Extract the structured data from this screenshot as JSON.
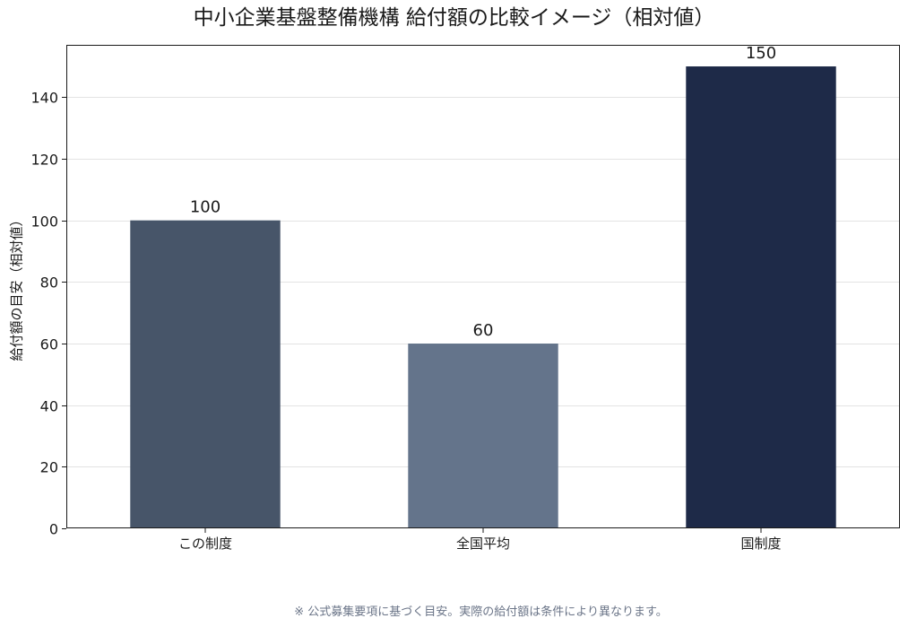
{
  "chart_data": {
    "type": "bar",
    "title": "中小企業基盤整備機構 給付額の比較イメージ（相対値）",
    "xlabel": "",
    "ylabel": "給付額の目安（相対値）",
    "categories": [
      "この制度",
      "全国平均",
      "国制度"
    ],
    "values": [
      100,
      60,
      150
    ],
    "data_labels": [
      "100",
      "60",
      "150"
    ],
    "ylim": [
      0,
      157
    ],
    "yticks": [
      0,
      20,
      40,
      60,
      80,
      100,
      120,
      140
    ],
    "ytick_labels": [
      "0",
      "20",
      "40",
      "60",
      "80",
      "100",
      "120",
      "140"
    ],
    "grid": true,
    "legend": "none",
    "colors": [
      "#475569",
      "#64748b",
      "#1e2a48"
    ]
  },
  "footnote": "※ 公式募集要項に基づく目安。実際の給付額は条件により異なります。"
}
